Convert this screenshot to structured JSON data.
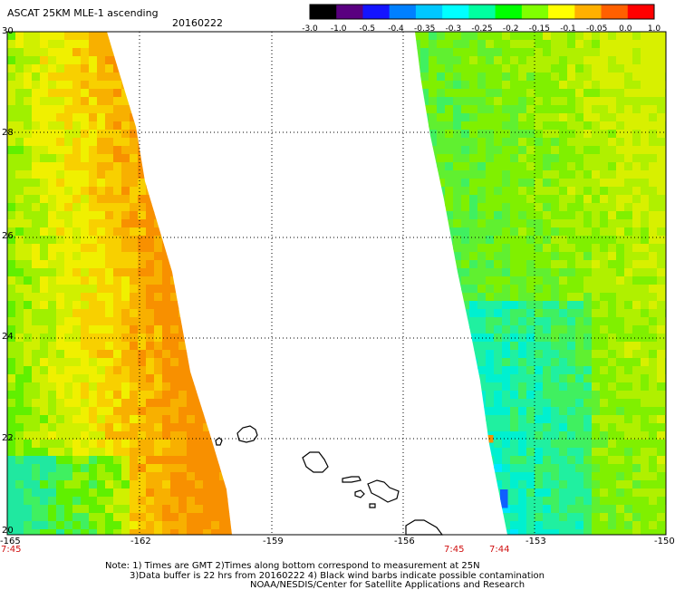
{
  "title": "ASCAT 25KM MLE-1 ascending",
  "date": "20160222",
  "colorbar": {
    "labels": [
      "-3.0",
      "-1.0",
      "-0.5",
      "-0.4",
      "-0.35",
      "-0.3",
      "-0.25",
      "-0.2",
      "-0.15",
      "-0.1",
      "-0.05",
      "0.0",
      "1.0"
    ],
    "colors": [
      "#000000",
      "#5a0080",
      "#1414ff",
      "#0080ff",
      "#00c8ff",
      "#00ffff",
      "#00ffa0",
      "#00ff00",
      "#80ff00",
      "#ffff00",
      "#ffb000",
      "#ff6000",
      "#ff0000"
    ]
  },
  "y_ticks": [
    "30",
    "28",
    "26",
    "24",
    "22",
    "20"
  ],
  "x_ticks": [
    "-165",
    "-162",
    "-159",
    "-156",
    "-153",
    "-150"
  ],
  "times": [
    {
      "label": "7:45",
      "at": "-165"
    },
    {
      "label": "7:45",
      "at": "-155"
    },
    {
      "label": "7:44",
      "at": "-154"
    }
  ],
  "notes": [
    "Note: 1) Times are GMT 2)Times along bottom correspond to measurement at 25N",
    "3)Data buffer is 22 hrs from 20160222 4) Black wind barbs indicate possible contamination",
    "NOAA/NESDIS/Center for Satellite Applications and Research"
  ]
}
